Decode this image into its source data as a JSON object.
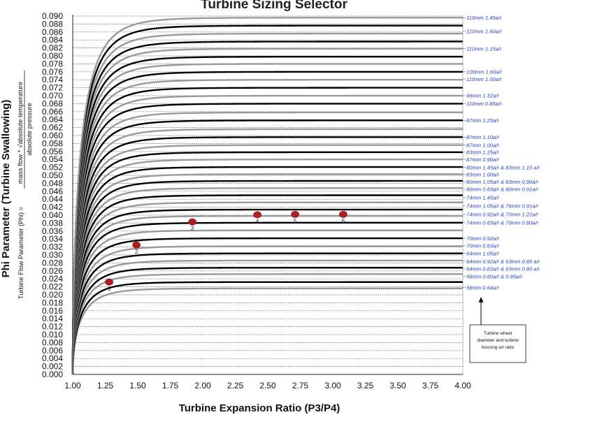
{
  "chart_data": {
    "type": "line",
    "title": "Turbine Sizing Selector",
    "xlabel": "Turbine Expansion Ratio (P3/P4)",
    "ylabel": "Phi Parameter (Turbine Swallowing)",
    "ylabel_secondary": "Turbine Flow Parameter (Phi) =",
    "ylabel_fraction_numerator": "mass flow * √absolute temperature",
    "ylabel_fraction_denominator": "absolute pressure",
    "xlim": [
      1.0,
      4.0
    ],
    "ylim": [
      0.0,
      0.09
    ],
    "x_ticks": [
      "1.00",
      "1.25",
      "1.50",
      "1.75",
      "2.00",
      "2.25",
      "2.50",
      "2.75",
      "3.00",
      "3.25",
      "3.50",
      "3.75",
      "4.00"
    ],
    "y_ticks": [
      "0.000",
      "0.002",
      "0.004",
      "0.006",
      "0.008",
      "0.010",
      "0.012",
      "0.014",
      "0.016",
      "0.018",
      "0.020",
      "0.022",
      "0.024",
      "0.026",
      "0.028",
      "0.030",
      "0.032",
      "0.034",
      "0.036",
      "0.038",
      "0.040",
      "0.042",
      "0.044",
      "0.046",
      "0.048",
      "0.050",
      "0.052",
      "0.054",
      "0.056",
      "0.058",
      "0.060",
      "0.062",
      "0.064",
      "0.066",
      "0.068",
      "0.070",
      "0.072",
      "0.074",
      "0.076",
      "0.078",
      "0.080",
      "0.082",
      "0.084",
      "0.086",
      "0.088",
      "0.090"
    ],
    "grid": "horizontal dotted",
    "curve_asymptotes": [
      0.0216,
      0.0232,
      0.0252,
      0.0268,
      0.0286,
      0.0304,
      0.0322,
      0.0342,
      0.0362,
      0.0381,
      0.0398,
      0.0414,
      0.0432,
      0.045,
      0.0468,
      0.0486,
      0.0503,
      0.0521,
      0.054,
      0.0558,
      0.0576,
      0.0596,
      0.0616,
      0.0638,
      0.0658,
      0.068,
      0.07,
      0.072,
      0.074,
      0.076,
      0.078,
      0.0798,
      0.0818,
      0.0836,
      0.0856,
      0.0876,
      0.0896
    ],
    "curve_colors": [
      "#9a9a9a",
      "#000000"
    ],
    "curve_labels": [
      {
        "text": "110mm 1.45a/r",
        "y": 0.0896
      },
      {
        "text": "110mm 1.60a/r",
        "y": 0.0862
      },
      {
        "text": "110mm 1.15a/r",
        "y": 0.0818
      },
      {
        "text": "100mm 1.60a/r",
        "y": 0.076
      },
      {
        "text": "110mm 1.00a/r",
        "y": 0.0742
      },
      {
        "text": "96mm 1.32a/r",
        "y": 0.07
      },
      {
        "text": "110mm 0.85a/r",
        "y": 0.068
      },
      {
        "text": "87mm 1.25a/r",
        "y": 0.0638
      },
      {
        "text": "87mm 1.10a/r",
        "y": 0.0596
      },
      {
        "text": "87mm 1.00a/r",
        "y": 0.0576
      },
      {
        "text": "83mm 1.25a/r",
        "y": 0.0558
      },
      {
        "text": "87mm 0.90a/r",
        "y": 0.054
      },
      {
        "text": "80mm 1.45a/r & 83mm 1.10 a/r",
        "y": 0.052
      },
      {
        "text": "83mm 1.00a/r",
        "y": 0.0502
      },
      {
        "text": "80mm 1.05a/r & 83mm 0.90a/r",
        "y": 0.0484
      },
      {
        "text": "80mm  0.83a/r & 80mm 0.91a/r",
        "y": 0.0465
      },
      {
        "text": "74mm 1.45a/r",
        "y": 0.0444
      },
      {
        "text": "74mm  1.05a/r & 76mm 0.91a/r",
        "y": 0.0423
      },
      {
        "text": "74mm  0.92a/r & 70mm 1.22a/r",
        "y": 0.0402
      },
      {
        "text": "74mm  0.83a/r & 70mm 0.80a/r",
        "y": 0.0381
      },
      {
        "text": "70mm  0.92a/r",
        "y": 0.0342
      },
      {
        "text": "70mm  0.83a/r",
        "y": 0.0323
      },
      {
        "text": "64mm  1.05a/r",
        "y": 0.0304
      },
      {
        "text": "64mm  0.92a/r & 63mm 0.85 a/r",
        "y": 0.0284
      },
      {
        "text": "64mm  0.83a/r & 63mm 0.80 a/r",
        "y": 0.0265
      },
      {
        "text": "58mm  0.80a/r & 0.85a/r",
        "y": 0.0246
      },
      {
        "text": "58mm  0.64a/r",
        "y": 0.0218
      }
    ],
    "operating_points": [
      {
        "label": "1",
        "x": 1.28,
        "y": 0.0232
      },
      {
        "label": "2",
        "x": 1.49,
        "y": 0.0325
      },
      {
        "label": "3",
        "x": 1.92,
        "y": 0.0383
      },
      {
        "label": "4",
        "x": 2.42,
        "y": 0.0401
      },
      {
        "label": "5",
        "x": 2.71,
        "y": 0.0402
      },
      {
        "label": "6",
        "x": 3.08,
        "y": 0.0402
      }
    ],
    "point_color": "#b01e1e",
    "annotation": {
      "lines": [
        "Turbine wheel",
        "diameter and turbine",
        "housing a/r ratio"
      ],
      "arrow_to": {
        "x": 4.15,
        "y": 0.0195
      }
    }
  }
}
